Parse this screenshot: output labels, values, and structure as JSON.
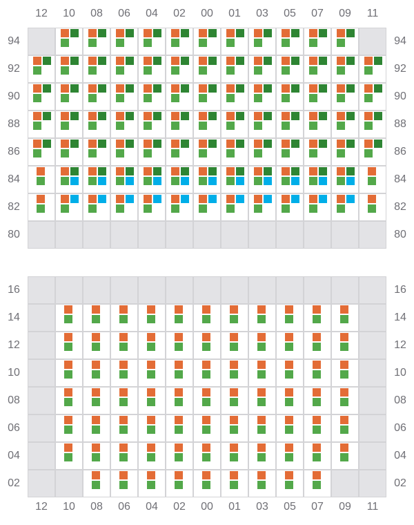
{
  "columns": [
    "12",
    "10",
    "08",
    "06",
    "04",
    "02",
    "00",
    "01",
    "03",
    "05",
    "07",
    "09",
    "11"
  ],
  "colors": {
    "orange": "#e36c36",
    "dark_green": "#2e8533",
    "green": "#53a84a",
    "blue": "#00aee8",
    "empty": "#e3e3e6"
  },
  "legend_patterns": {
    "A": "orange, dark_green / green",
    "B": "orange, dark_green / green, blue",
    "C": "orange / green (centered)",
    "D": "orange, blue / green",
    "E": "empty"
  },
  "top_grid": {
    "rows": [
      {
        "label": "94",
        "cells": "EAAAAAAAAAAAE"
      },
      {
        "label": "92",
        "cells": "AAAAAAAAAAAAA"
      },
      {
        "label": "90",
        "cells": "AAAAAAAAAAAAA"
      },
      {
        "label": "88",
        "cells": "AAAAAAAAAAAAA"
      },
      {
        "label": "86",
        "cells": "AAAAAAAAAAAAA"
      },
      {
        "label": "84",
        "cells": "CBBBBBBBBBBBC"
      },
      {
        "label": "82",
        "cells": "CDDDDDDDDDDDC"
      },
      {
        "label": "80",
        "cells": "EEEEEEEEEEEEE"
      }
    ]
  },
  "bottom_grid": {
    "rows": [
      {
        "label": "16",
        "cells": "EEEEEEEEEEEEE"
      },
      {
        "label": "14",
        "cells": "ECCCCCCCCCCCE"
      },
      {
        "label": "12",
        "cells": "ECCCCCCCCCCCE"
      },
      {
        "label": "10",
        "cells": "ECCCCCCCCCCCE"
      },
      {
        "label": "08",
        "cells": "ECCCCCCCCCCCE"
      },
      {
        "label": "06",
        "cells": "ECCCCCCCCCCCE"
      },
      {
        "label": "04",
        "cells": "ECCCCCCCCCCCE"
      },
      {
        "label": "02",
        "cells": "EECCCCCCCCCEE"
      }
    ]
  }
}
